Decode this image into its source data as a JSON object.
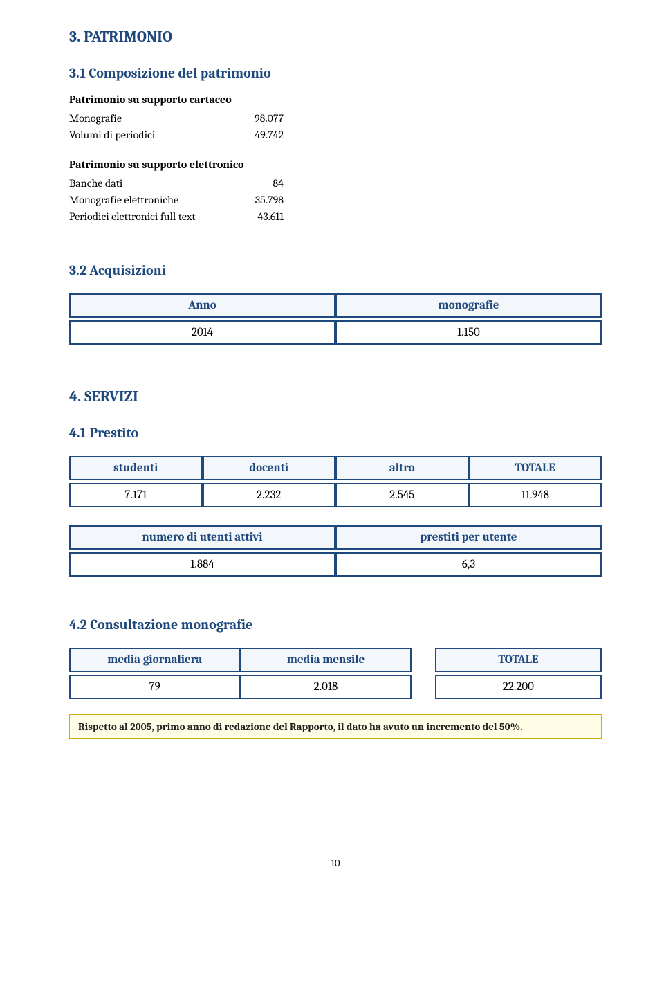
{
  "section3": {
    "title": "3. PATRIMONIO",
    "sub1": {
      "title": "3.1 Composizione del patrimonio",
      "cartaceo": {
        "heading": "Patrimonio su supporto cartaceo",
        "rows": [
          {
            "label": "Monografie",
            "value": "98.077"
          },
          {
            "label": "Volumi di periodici",
            "value": "49.742"
          }
        ]
      },
      "elettronico": {
        "heading": "Patrimonio su supporto elettronico",
        "rows": [
          {
            "label": "Banche dati",
            "value": "84"
          },
          {
            "label": "Monografie elettroniche",
            "value": "35.798"
          },
          {
            "label": "Periodici elettronici full text",
            "value": "43.611"
          }
        ]
      }
    },
    "sub2": {
      "title": "3.2 Acquisizioni",
      "table": {
        "headers": [
          "Anno",
          "monografie"
        ],
        "row": [
          "2014",
          "1.150"
        ]
      }
    }
  },
  "section4": {
    "title": "4. SERVIZI",
    "sub1": {
      "title": "4.1 Prestito",
      "table1": {
        "headers": [
          "studenti",
          "docenti",
          "altro",
          "TOTALE"
        ],
        "row": [
          "7.171",
          "2.232",
          "2.545",
          "11.948"
        ]
      },
      "table2": {
        "headers": [
          "numero di utenti attivi",
          "prestiti per utente"
        ],
        "row": [
          "1.884",
          "6,3"
        ]
      }
    },
    "sub2": {
      "title": "4.2 Consultazione monografie",
      "left_table": {
        "headers": [
          "media giornaliera",
          "media mensile"
        ],
        "row": [
          "79",
          "2.018"
        ]
      },
      "right_table": {
        "header": "TOTALE",
        "value": "22.200"
      },
      "note": "Rispetto al 2005, primo anno di redazione del Rapporto, il dato ha avuto un incremento del 50%."
    }
  },
  "page_number": "10",
  "colors": {
    "heading": "#1f497d",
    "table_border": "#1f497d",
    "table_header_bg": "#f3f6fb",
    "note_border": "#d0b000",
    "note_bg": "#fffde6"
  }
}
